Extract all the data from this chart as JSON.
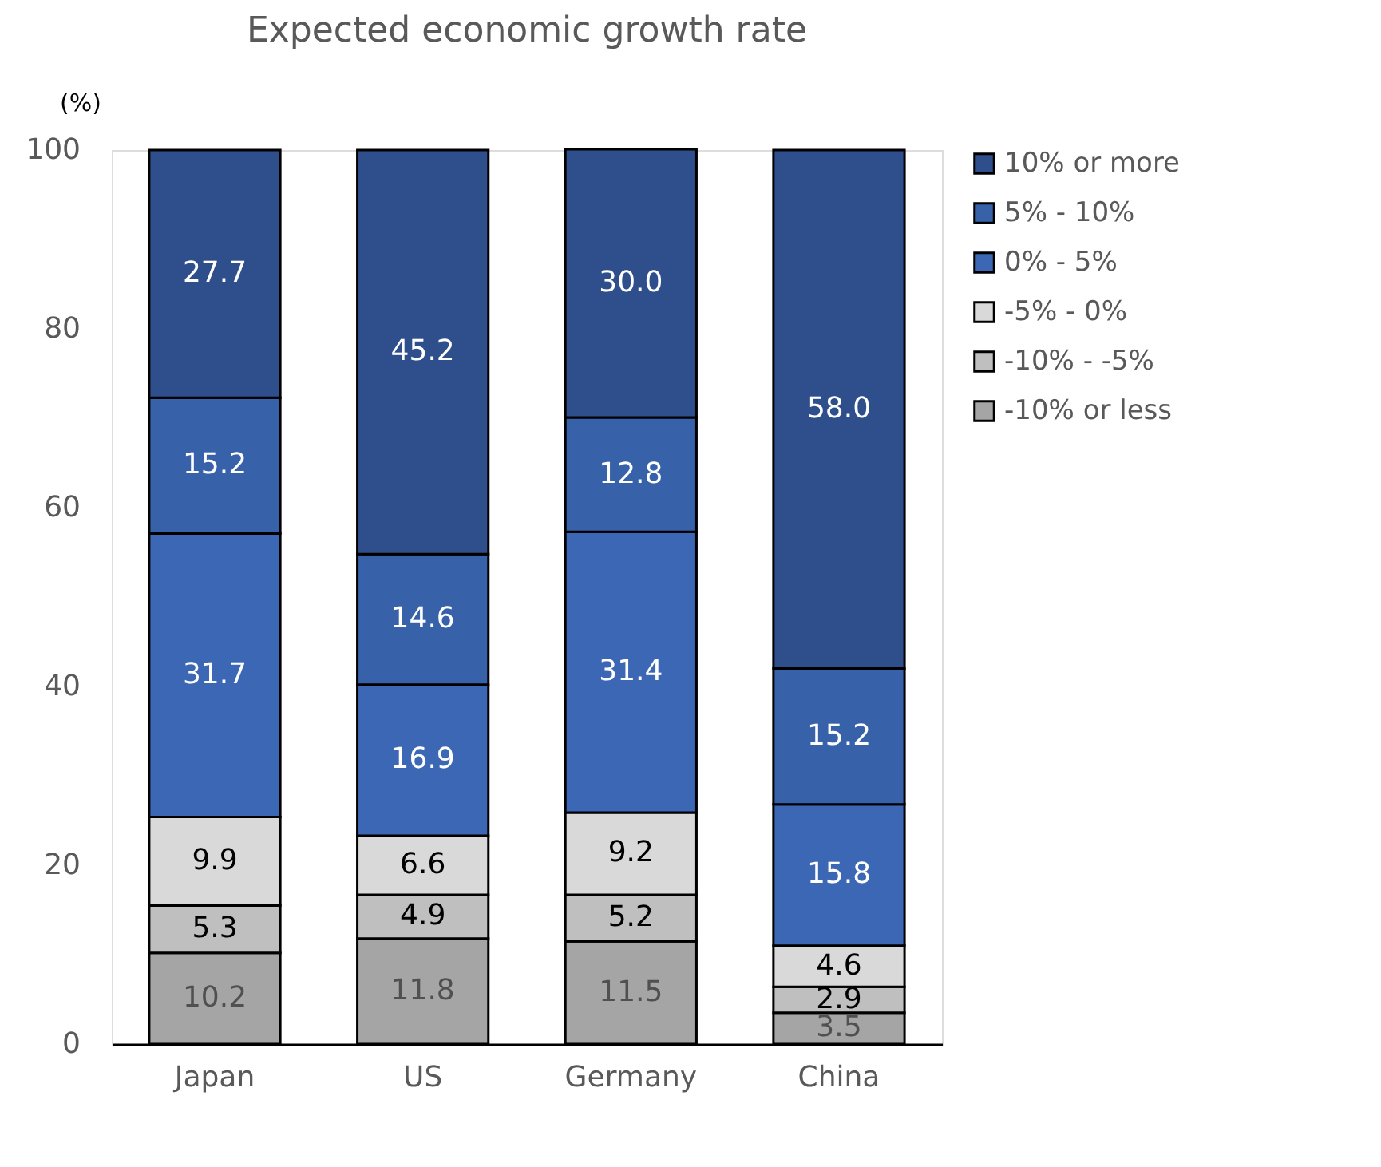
{
  "chart_data": {
    "type": "bar",
    "title": "Expected economic growth rate",
    "ylabel": "(%)",
    "categories": [
      "Japan",
      "US",
      "Germany",
      "China"
    ],
    "stacked": true,
    "legend": "right",
    "grid": false,
    "ylim": [
      0,
      100
    ],
    "yticks": [
      0,
      20,
      40,
      60,
      80,
      100
    ],
    "series": [
      {
        "name": "-10% or less",
        "color": "#a5a5a5",
        "values": [
          10.2,
          11.8,
          11.5,
          3.5
        ],
        "value_labels": [
          "10.2",
          "11.8",
          "11.5",
          "3.5"
        ]
      },
      {
        "name": "-10% - -5%",
        "color": "#bfbfbf",
        "values": [
          5.3,
          4.9,
          5.2,
          2.9
        ],
        "value_labels": [
          "5.3",
          "4.9",
          "5.2",
          "2.9"
        ]
      },
      {
        "name": "-5% -  0%",
        "color": "#d9d9d9",
        "values": [
          9.9,
          6.6,
          9.2,
          4.6
        ],
        "value_labels": [
          "9.9",
          "6.6",
          "9.2",
          "4.6"
        ]
      },
      {
        "name": "0% - 5%",
        "color": "#3c67b4",
        "values": [
          31.7,
          16.9,
          31.4,
          15.8
        ],
        "value_labels": [
          "31.7",
          "16.9",
          "31.4",
          "15.8"
        ]
      },
      {
        "name": "5% - 10%",
        "color": "#3761a8",
        "values": [
          15.2,
          14.6,
          12.8,
          15.2
        ],
        "value_labels": [
          "15.2",
          "14.6",
          "12.8",
          "15.2"
        ]
      },
      {
        "name": "10% or more",
        "color": "#2f4f8c",
        "values": [
          27.7,
          45.2,
          30.0,
          58.0
        ],
        "value_labels": [
          "27.7",
          "45.2",
          "30.0",
          "58.0"
        ]
      }
    ]
  }
}
